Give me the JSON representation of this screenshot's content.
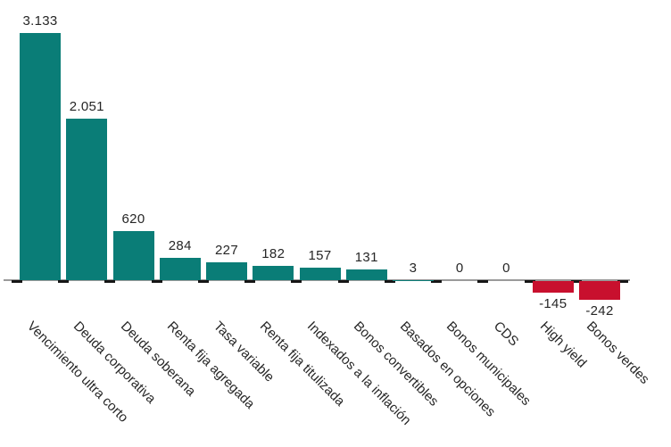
{
  "chart_data": {
    "type": "bar",
    "categories": [
      "Vencimiento ultra corto",
      "Deuda corporativa",
      "Deuda soberana",
      "Renta fija agregada",
      "Tasa variable",
      "Renta fija titulizada",
      "Indexados a la inflación",
      "Bonos convertibles",
      "Basados en opciones",
      "Bonos municipales",
      "CDS",
      "High yield",
      "Bonos verdes"
    ],
    "values": [
      3133,
      2051,
      620,
      284,
      227,
      182,
      157,
      131,
      3,
      0,
      0,
      -145,
      -242
    ],
    "value_labels": [
      "3.133",
      "2.051",
      "620",
      "284",
      "227",
      "182",
      "157",
      "131",
      "3",
      "0",
      "0",
      "-145",
      "-242"
    ],
    "ylim": [
      -242,
      3133
    ],
    "grid": false,
    "legend": "none",
    "xlabel": "",
    "ylabel": "",
    "colors": {
      "positive_bar": "#0a7d77",
      "negative_bar": "#c8102e",
      "text": "#262626",
      "axis_line": "#9a9a9a",
      "axis_tick": "#151515",
      "background": "#ffffff"
    }
  }
}
